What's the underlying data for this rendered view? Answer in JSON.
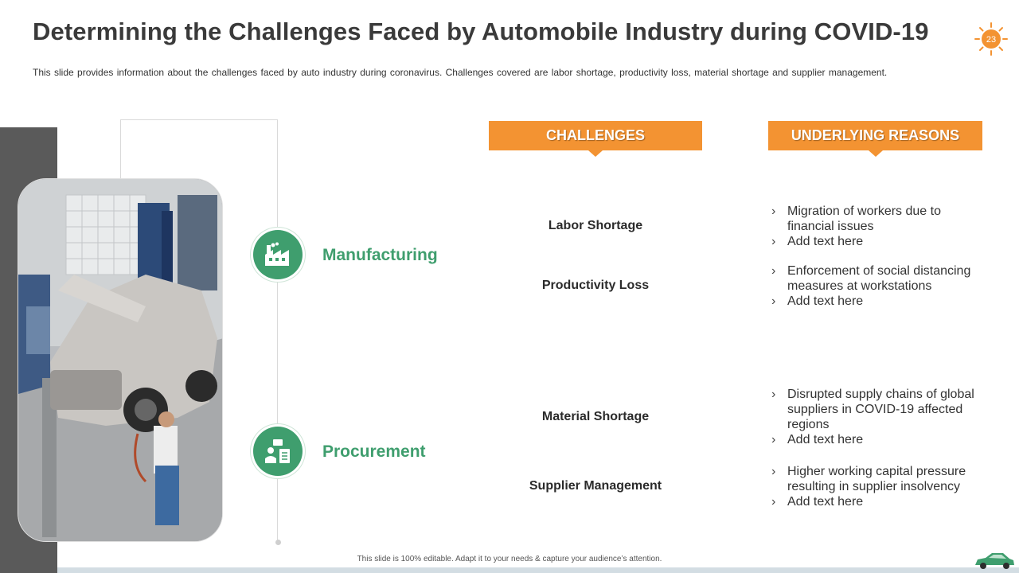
{
  "slide": {
    "title": "Determining the Challenges Faced by Automobile Industry during COVID-19",
    "subtitle": "This slide provides information about the challenges faced by auto industry during coronavirus. Challenges covered are labor shortage, productivity loss, material shortage and supplier management.",
    "page_number": "23",
    "footer": "This slide is 100% editable. Adapt it to your needs & capture your audience’s attention."
  },
  "headers": {
    "challenges": "CHALLENGES",
    "reasons": "UNDERLYING REASONS"
  },
  "categories": [
    {
      "label": "Manufacturing",
      "icon": "factory-icon"
    },
    {
      "label": "Procurement",
      "icon": "procurement-icon"
    }
  ],
  "challenges": [
    "Labor Shortage",
    "Productivity Loss",
    "Material Shortage",
    "Supplier Management"
  ],
  "reasons": [
    [
      "Migration of workers due to financial issues",
      "Add text here"
    ],
    [
      "Enforcement of social distancing measures at workstations",
      "Add text here"
    ],
    [
      "Disrupted supply chains of global suppliers in COVID-19 affected regions",
      "Add text here"
    ],
    [
      "Higher working capital pressure resulting in supplier insolvency",
      "Add text here"
    ]
  ],
  "colors": {
    "accent_orange": "#f39332",
    "accent_green": "#3f9e6e",
    "side_bar": "#5a5a5a"
  }
}
